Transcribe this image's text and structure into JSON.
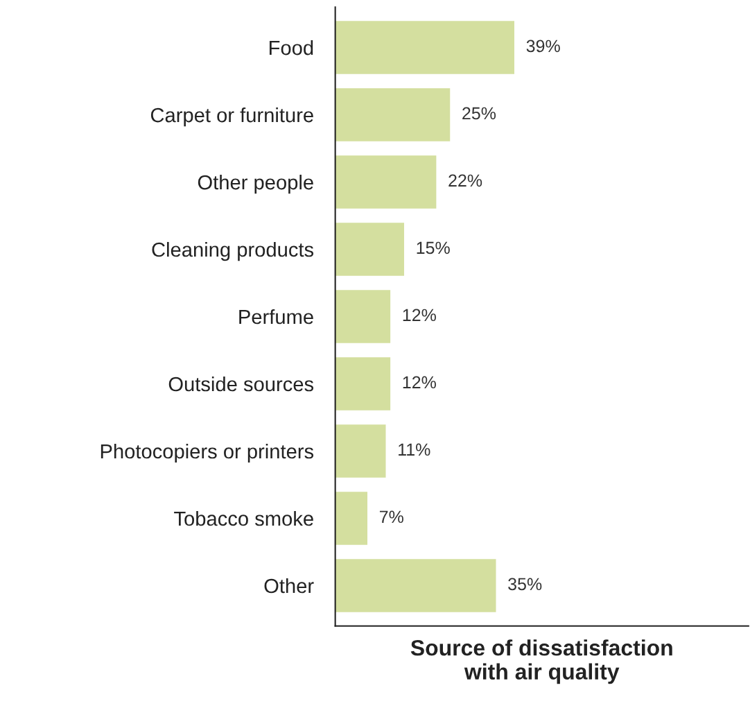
{
  "chart_data": {
    "type": "bar",
    "orientation": "horizontal",
    "xlabel": "Source of dissatisfaction\nwith air quality",
    "categories": [
      "Food",
      "Carpet or furniture",
      "Other people",
      "Cleaning products",
      "Perfume",
      "Outside sources",
      "Photocopiers or printers",
      "Tobacco smoke",
      "Other"
    ],
    "values": [
      39,
      25,
      22,
      15,
      12,
      12,
      11,
      7,
      35
    ],
    "value_labels": [
      "39%",
      "25%",
      "22%",
      "15%",
      "12%",
      "12%",
      "11%",
      "7%",
      "35%"
    ],
    "color": "#d4df9f",
    "xlim": [
      0,
      90
    ],
    "tick_labels": "y",
    "grid": false,
    "legend": false
  }
}
